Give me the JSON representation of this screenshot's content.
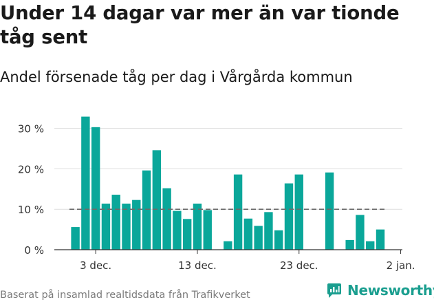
{
  "header": {
    "title": "Under 14 dagar var mer än var tionde tåg sent",
    "subtitle": "Andel försenade tåg per dag i Vårgårda kommun"
  },
  "footer": {
    "source": "Baserat på insamlad realtidsdata från Trafikverket",
    "brand": "Newsworthy"
  },
  "colors": {
    "bar": "#0aa79a",
    "reference": "#6b6b6b",
    "grid": "#dddddd",
    "axis": "#333333",
    "brand": "#1a9e8f"
  },
  "chart_data": {
    "type": "bar",
    "x": [
      "2019-12-01",
      "2019-12-02",
      "2019-12-03",
      "2019-12-04",
      "2019-12-05",
      "2019-12-06",
      "2019-12-07",
      "2019-12-08",
      "2019-12-09",
      "2019-12-10",
      "2019-12-11",
      "2019-12-12",
      "2019-12-13",
      "2019-12-14",
      "2019-12-15",
      "2019-12-16",
      "2019-12-17",
      "2019-12-18",
      "2019-12-19",
      "2019-12-20",
      "2019-12-21",
      "2019-12-22",
      "2019-12-23",
      "2019-12-24",
      "2019-12-25",
      "2019-12-26",
      "2019-12-27",
      "2019-12-28",
      "2019-12-29",
      "2019-12-30",
      "2019-12-31"
    ],
    "values": [
      5.6,
      32.9,
      30.3,
      11.4,
      13.6,
      11.4,
      12.3,
      19.6,
      24.6,
      15.2,
      9.6,
      7.6,
      11.4,
      9.8,
      null,
      2.1,
      18.6,
      7.7,
      5.9,
      9.3,
      4.8,
      16.4,
      18.6,
      null,
      null,
      19.1,
      null,
      2.4,
      8.6,
      2.1,
      5.0
    ],
    "reference_line": 10,
    "xticks": [
      "3 dec.",
      "13 dec.",
      "23 dec.",
      "2 jan."
    ],
    "yticks": [
      "0 %",
      "10 %",
      "20 %",
      "30 %"
    ],
    "ylim": [
      0,
      35
    ],
    "grid": true,
    "unit": "%"
  }
}
